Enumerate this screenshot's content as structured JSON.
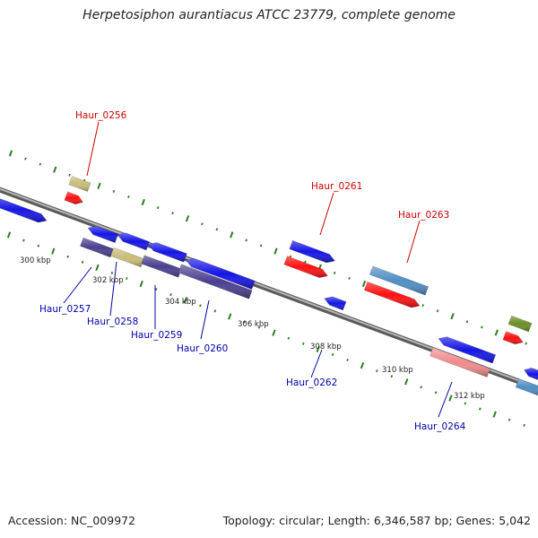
{
  "title": "Herpetosiphon aurantiacus ATCC 23779, complete genome",
  "footer": {
    "accession": "Accession: NC_009972",
    "summary": "Topology: circular; Length: 6,346,587 bp; Genes: 5,042"
  },
  "colors": {
    "background": "#ffffff",
    "backbone": "#8a8a8a",
    "tick": "#2a7f1e",
    "top_label": "#cc0000",
    "bottom_label": "#0000aa",
    "blue": "#1515e6",
    "red": "#ff1010",
    "navy": "#4a3f8f",
    "khaki": "#c8bd78",
    "steel": "#4f8ec4",
    "pink": "#f08c8c",
    "olive": "#6b8e23"
  },
  "scale_labels": [
    "300 kbp",
    "302 kbp",
    "304 kbp",
    "306 kbp",
    "308 kbp",
    "310 kbp",
    "312 kbp"
  ],
  "gene_labels": {
    "top": [
      "Haur_0256",
      "Haur_0261",
      "Haur_0263"
    ],
    "bottom": [
      "Haur_0257",
      "Haur_0258",
      "Haur_0259",
      "Haur_0260",
      "Haur_0262",
      "Haur_0264"
    ]
  }
}
